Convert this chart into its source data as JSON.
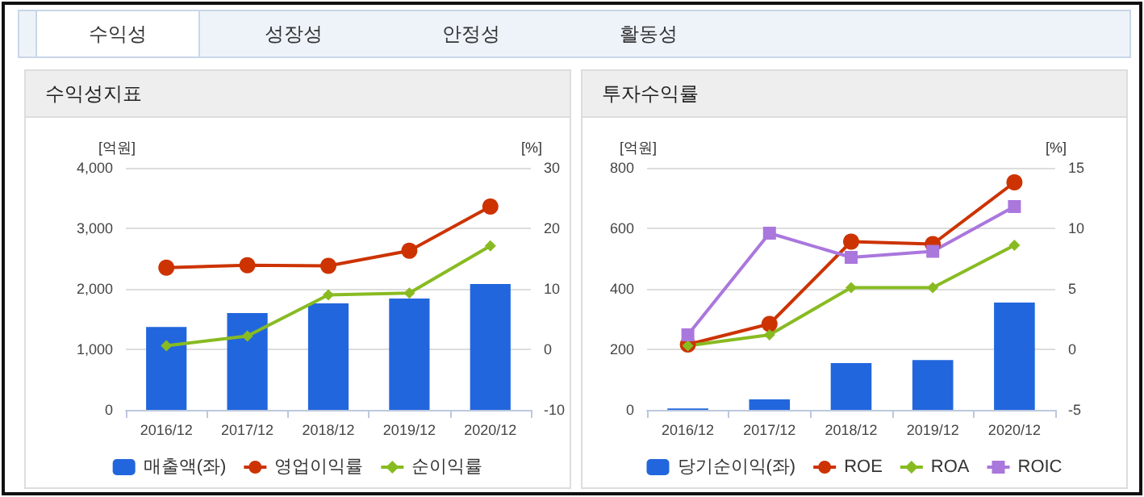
{
  "chart_data": [
    {
      "type": "bar",
      "title": "수익성지표",
      "annotations": [
        "수익성",
        "성장성",
        "안정성",
        "활동성"
      ],
      "ylabel": "[억원]",
      "y2label": "[%]",
      "categories": [
        "2016/12",
        "2017/12",
        "2018/12",
        "2019/12",
        "2020/12"
      ],
      "series": [
        {
          "name": "매출액(좌)",
          "color": "#2266dd",
          "values": [
            1370,
            1600,
            1760,
            1840,
            2080
          ]
        },
        {
          "name": "영업이익률",
          "type": "line",
          "axis": "y2",
          "marker": "circle",
          "color": "#cc3300",
          "values": [
            13.5,
            13.9,
            13.8,
            16.3,
            23.6
          ]
        },
        {
          "name": "순이익률",
          "type": "line",
          "axis": "y2",
          "marker": "diamond",
          "color": "#88bb22",
          "values": [
            0.6,
            2.2,
            9.0,
            9.3,
            17.1
          ]
        }
      ],
      "ylim": [
        0,
        4000
      ],
      "yticks": [
        0,
        {
          "value": 1000,
          "label": "1,000"
        },
        {
          "value": 2000,
          "label": "2,000"
        },
        {
          "value": 3000,
          "label": "3,000"
        },
        {
          "value": 4000,
          "label": "4,000"
        }
      ],
      "y2lim": [
        -10,
        30
      ],
      "y2ticks": [
        -10,
        0,
        10,
        20,
        30
      ],
      "grid": "y",
      "legend": "bottom"
    },
    {
      "type": "bar",
      "title": "투자수익률",
      "ylabel": "[억원]",
      "y2label": "[%]",
      "categories": [
        "2016/12",
        "2017/12",
        "2018/12",
        "2019/12",
        "2020/12"
      ],
      "series": [
        {
          "name": "당기순이익(좌)",
          "color": "#2266dd",
          "values": [
            5,
            35,
            155,
            165,
            355
          ]
        },
        {
          "name": "ROE",
          "type": "line",
          "axis": "y2",
          "marker": "circle",
          "color": "#cc3300",
          "values": [
            0.4,
            2.1,
            8.9,
            8.7,
            13.8
          ]
        },
        {
          "name": "ROA",
          "type": "line",
          "axis": "y2",
          "marker": "diamond",
          "color": "#88bb22",
          "values": [
            0.3,
            1.2,
            5.1,
            5.1,
            8.6
          ]
        },
        {
          "name": "ROIC",
          "type": "line",
          "axis": "y2",
          "marker": "square",
          "color": "#aa77dd",
          "values": [
            1.2,
            9.6,
            7.6,
            8.1,
            11.8
          ]
        }
      ],
      "ylim": [
        0,
        800
      ],
      "yticks": [
        0,
        200,
        400,
        600,
        800
      ],
      "y2lim": [
        -5,
        15
      ],
      "y2ticks": [
        -5,
        0,
        5,
        10,
        15
      ],
      "grid": "y",
      "legend": "bottom"
    }
  ]
}
